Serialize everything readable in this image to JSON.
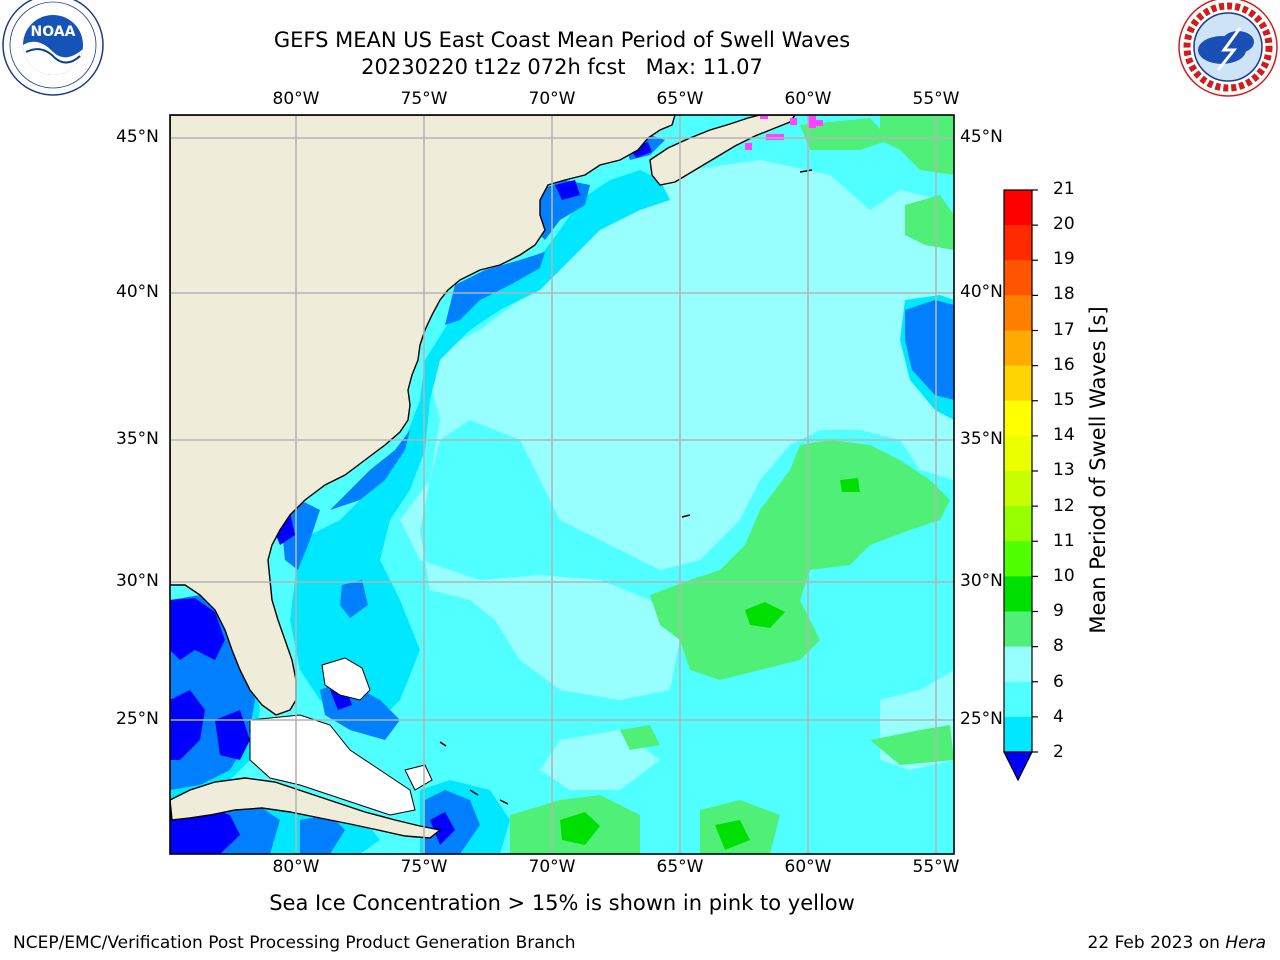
{
  "header": {
    "title_line1": "GEFS MEAN US East Coast Mean Period of Swell Waves",
    "title_line2": "20230220 t12z 072h fcst   Max: 11.07"
  },
  "logos": {
    "left": {
      "name": "noaa-logo",
      "text": "NOAA",
      "ring_text": "NATIONAL OCEANIC AND ATMOSPHERIC ADMINISTRATION · U.S. DEPARTMENT OF COMMERCE"
    },
    "right": {
      "name": "nws-logo",
      "ring_text": "NATIONAL WEATHER SERVICE"
    }
  },
  "axes": {
    "lon_labels": [
      "80°W",
      "75°W",
      "70°W",
      "65°W",
      "60°W",
      "55°W"
    ],
    "lat_labels": [
      "45°N",
      "40°N",
      "35°N",
      "30°N",
      "25°N"
    ]
  },
  "colorbar": {
    "title": "Mean Period of Swell Waves [s]",
    "ticks": [
      "21",
      "20",
      "19",
      "18",
      "17",
      "16",
      "15",
      "14",
      "13",
      "12",
      "11",
      "10",
      "9",
      "8",
      "6",
      "4",
      "2"
    ],
    "colors": [
      "#ff0000",
      "#ff2a00",
      "#ff5500",
      "#ff7f00",
      "#ffaa00",
      "#ffd400",
      "#ffff00",
      "#eaff00",
      "#c8ff00",
      "#96ff00",
      "#50ff00",
      "#00e000",
      "#50f078",
      "#98ffff",
      "#50ffff",
      "#00e8ff",
      "#0080ff"
    ],
    "extend_color": "#0000ff"
  },
  "map_colors": {
    "land": "#efecda",
    "band_2_4": "#0080ff",
    "band_below_2": "#0000ff",
    "band_4_6": "#00e8ff",
    "band_6_8": "#50ffff",
    "band_8_9": "#98ffff",
    "band_9_10": "#50f078",
    "band_10_11": "#00e000",
    "sea_ice": "#ff44ff",
    "grid": "#b4b4b4"
  },
  "note": "Sea Ice Concentration > 15% is shown in pink to yellow",
  "footer": {
    "left": "NCEP/EMC/Verification Post Processing Product Generation Branch",
    "date": "22 Feb 2023 on ",
    "host": "Hera"
  }
}
